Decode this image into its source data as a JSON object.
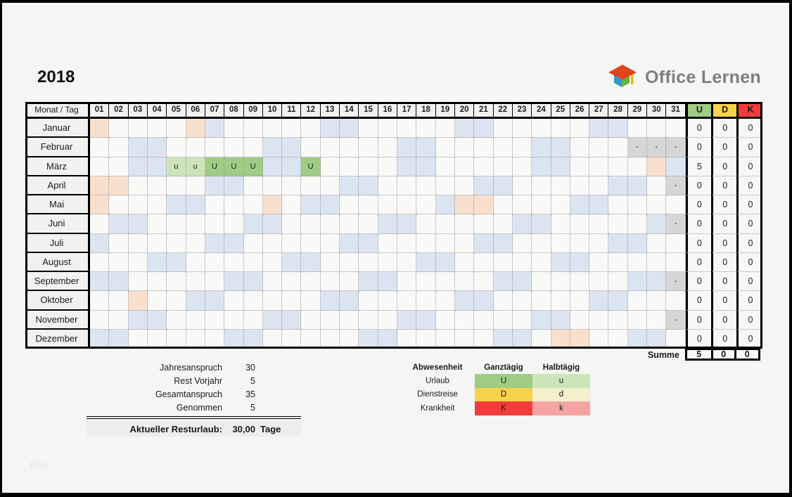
{
  "page": {
    "title": "2018",
    "watermark": "blog"
  },
  "logo": {
    "text": "Office Lernen"
  },
  "calendar": {
    "corner_label": "Monat / Tag",
    "days": [
      "01",
      "02",
      "03",
      "04",
      "05",
      "06",
      "07",
      "08",
      "09",
      "10",
      "11",
      "12",
      "13",
      "14",
      "15",
      "16",
      "17",
      "18",
      "19",
      "20",
      "21",
      "22",
      "23",
      "24",
      "25",
      "26",
      "27",
      "28",
      "29",
      "30",
      "31"
    ],
    "type_columns": [
      "U",
      "D",
      "K"
    ],
    "cell_marks": {
      "vacation_full": "U",
      "vacation_half": "u",
      "invalid": "-"
    },
    "months": [
      {
        "name": "Januar",
        "holiday": [
          1,
          6
        ],
        "weekend": [
          7,
          13,
          14,
          20,
          21,
          27,
          28
        ],
        "invalid": [],
        "vacation_full": [],
        "vacation_half": [],
        "totals": {
          "u": "0",
          "d": "0",
          "k": "0"
        }
      },
      {
        "name": "Februar",
        "holiday": [],
        "weekend": [
          3,
          4,
          10,
          11,
          17,
          18,
          24,
          25
        ],
        "invalid": [
          29,
          30,
          31
        ],
        "vacation_full": [],
        "vacation_half": [],
        "totals": {
          "u": "0",
          "d": "0",
          "k": "0"
        }
      },
      {
        "name": "März",
        "holiday": [
          30
        ],
        "weekend": [
          3,
          4,
          10,
          11,
          17,
          18,
          24,
          25,
          31
        ],
        "invalid": [],
        "vacation_full": [
          7,
          8,
          9,
          12
        ],
        "vacation_half": [
          5,
          6
        ],
        "totals": {
          "u": "5",
          "d": "0",
          "k": "0"
        }
      },
      {
        "name": "April",
        "holiday": [
          1,
          2
        ],
        "weekend": [
          7,
          8,
          14,
          15,
          21,
          22,
          28,
          29
        ],
        "invalid": [
          31
        ],
        "vacation_full": [],
        "vacation_half": [],
        "totals": {
          "u": "0",
          "d": "0",
          "k": "0"
        }
      },
      {
        "name": "Mai",
        "holiday": [
          1,
          10,
          20,
          21
        ],
        "weekend": [
          5,
          6,
          12,
          13,
          19,
          26,
          27
        ],
        "invalid": [],
        "vacation_full": [],
        "vacation_half": [],
        "totals": {
          "u": "0",
          "d": "0",
          "k": "0"
        }
      },
      {
        "name": "Juni",
        "holiday": [],
        "weekend": [
          2,
          3,
          9,
          10,
          16,
          17,
          23,
          24,
          30
        ],
        "invalid": [
          31
        ],
        "vacation_full": [],
        "vacation_half": [],
        "totals": {
          "u": "0",
          "d": "0",
          "k": "0"
        }
      },
      {
        "name": "Juli",
        "holiday": [],
        "weekend": [
          1,
          7,
          8,
          14,
          15,
          21,
          22,
          28,
          29
        ],
        "invalid": [],
        "vacation_full": [],
        "vacation_half": [],
        "totals": {
          "u": "0",
          "d": "0",
          "k": "0"
        }
      },
      {
        "name": "August",
        "holiday": [],
        "weekend": [
          4,
          5,
          11,
          12,
          18,
          19,
          25,
          26
        ],
        "invalid": [],
        "vacation_full": [],
        "vacation_half": [],
        "totals": {
          "u": "0",
          "d": "0",
          "k": "0"
        }
      },
      {
        "name": "September",
        "holiday": [],
        "weekend": [
          1,
          2,
          8,
          9,
          15,
          16,
          22,
          23,
          29,
          30
        ],
        "invalid": [
          31
        ],
        "vacation_full": [],
        "vacation_half": [],
        "totals": {
          "u": "0",
          "d": "0",
          "k": "0"
        }
      },
      {
        "name": "Oktober",
        "holiday": [
          3
        ],
        "weekend": [
          6,
          7,
          13,
          14,
          20,
          21,
          27,
          28
        ],
        "invalid": [],
        "vacation_full": [],
        "vacation_half": [],
        "totals": {
          "u": "0",
          "d": "0",
          "k": "0"
        }
      },
      {
        "name": "November",
        "holiday": [],
        "weekend": [
          3,
          4,
          10,
          11,
          17,
          18,
          24,
          25
        ],
        "invalid": [
          31
        ],
        "vacation_full": [],
        "vacation_half": [],
        "totals": {
          "u": "0",
          "d": "0",
          "k": "0"
        }
      },
      {
        "name": "Dezember",
        "holiday": [
          25,
          26
        ],
        "weekend": [
          1,
          2,
          8,
          9,
          15,
          16,
          22,
          23,
          29,
          30
        ],
        "invalid": [],
        "vacation_full": [],
        "vacation_half": [],
        "totals": {
          "u": "0",
          "d": "0",
          "k": "0"
        }
      }
    ],
    "sum_row": {
      "label": "Summe",
      "totals": {
        "u": "5",
        "d": "0",
        "k": "0"
      }
    }
  },
  "summary": {
    "rows": [
      {
        "label": "Jahresanspruch",
        "value": "30"
      },
      {
        "label": "Rest Vorjahr",
        "value": "5"
      },
      {
        "label": "Gesamtanspruch",
        "value": "35"
      },
      {
        "label": "Genommen",
        "value": "5"
      }
    ],
    "result": {
      "label": "Aktueller Resturlaub:",
      "value": "30,00",
      "unit": "Tage"
    }
  },
  "legend": {
    "title": "Abwesenheit",
    "col_full": "Ganztägig",
    "col_half": "Halbtägig",
    "rows": [
      {
        "label": "Urlaub",
        "full": "U",
        "half": "u",
        "full_color": "#a0cb85",
        "half_color": "#cde4ba"
      },
      {
        "label": "Dienstreise",
        "full": "D",
        "half": "d",
        "full_color": "#f7d34b",
        "half_color": "#f4f0cc"
      },
      {
        "label": "Krankheit",
        "full": "K",
        "half": "k",
        "full_color": "#f23b3b",
        "half_color": "#f5a4a3"
      }
    ]
  },
  "colors": {
    "weekend": "#dbe5f1",
    "holiday": "#f9e0cd",
    "invalid": "#d6d6d6",
    "vacation_full": "#a0cb85",
    "vacation_half": "#cde4ba",
    "type_u": "#a0cb85",
    "type_d": "#f7d34b",
    "type_k": "#f23b3b"
  }
}
